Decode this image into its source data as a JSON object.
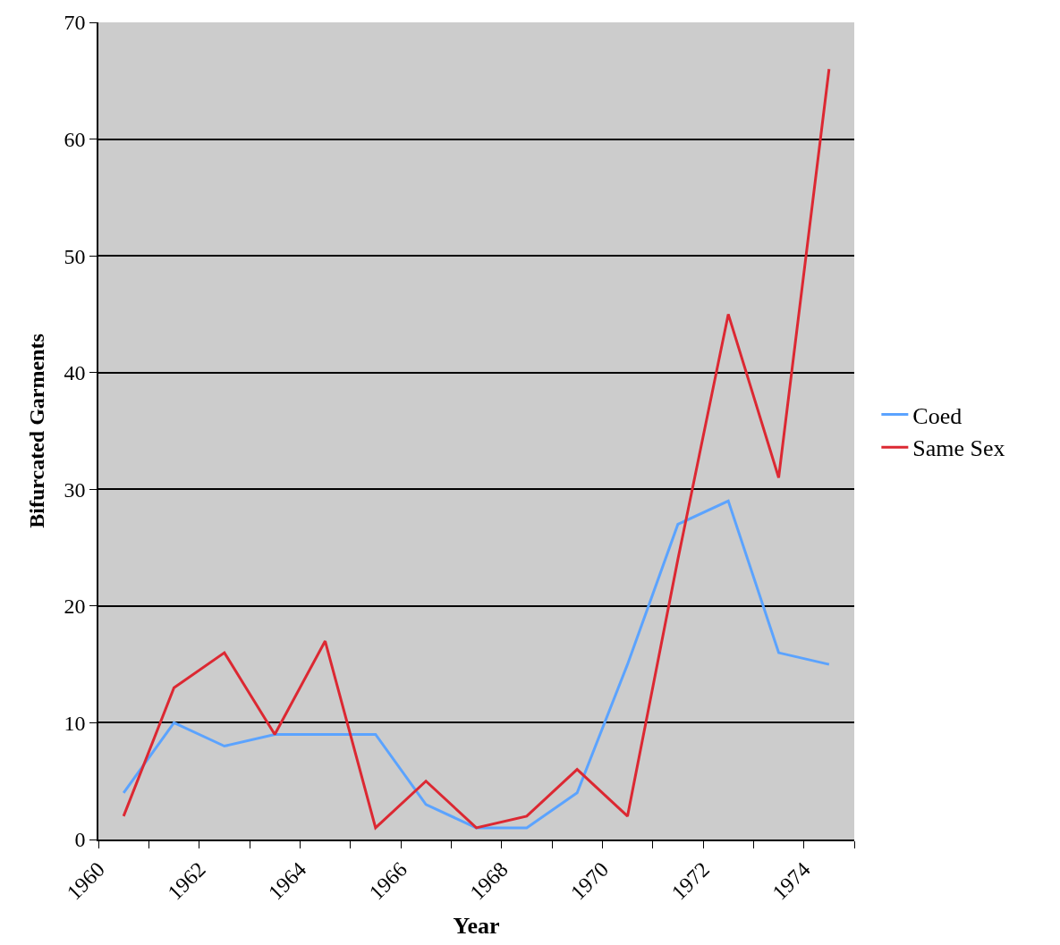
{
  "chart_data": {
    "type": "line",
    "xlabel": "Year",
    "ylabel": "Bifurcated Garments",
    "x": [
      1960.5,
      1961.5,
      1962.5,
      1963.5,
      1964.5,
      1965.5,
      1966.5,
      1967.5,
      1968.5,
      1969.5,
      1970.5,
      1971.5,
      1972.5,
      1973.5,
      1974.5
    ],
    "series": [
      {
        "name": "Coed",
        "color": "#5ba3ff",
        "values": [
          4,
          10,
          8,
          9,
          9,
          9,
          3,
          1,
          1,
          4,
          15,
          27,
          29,
          16,
          15
        ]
      },
      {
        "name": "Same Sex",
        "color": "#dc2832",
        "values": [
          2,
          13,
          16,
          9,
          17,
          1,
          5,
          1,
          2,
          6,
          2,
          24,
          45,
          31,
          66
        ]
      }
    ],
    "xlim": [
      1960,
      1975
    ],
    "xticks": [
      1960,
      {
        "value": 1961,
        "label": null
      },
      1962,
      {
        "value": 1963,
        "label": null
      },
      1964,
      {
        "value": 1965,
        "label": null
      },
      1966,
      {
        "value": 1967,
        "label": null
      },
      1968,
      {
        "value": 1969,
        "label": null
      },
      1970,
      {
        "value": 1971,
        "label": null
      },
      1972,
      {
        "value": 1973,
        "label": null
      },
      1974,
      {
        "value": 1975,
        "label": null
      }
    ],
    "ylim": [
      0,
      70
    ],
    "yticks": [
      0,
      10,
      20,
      30,
      40,
      50,
      60,
      70
    ],
    "grid": "y",
    "legend": "right",
    "marker": "none",
    "line_style": "solid"
  }
}
